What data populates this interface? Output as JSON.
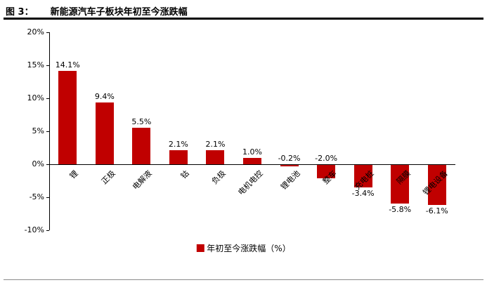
{
  "header": {
    "figure_label": "图 3：",
    "title": "新能源汽车子板块年初至今涨跌幅"
  },
  "chart_data": {
    "type": "bar",
    "title": "新能源汽车子板块年初至今涨跌幅",
    "categories": [
      "锂",
      "正极",
      "电解液",
      "钴",
      "负极",
      "电机电控",
      "锂电池",
      "整车",
      "充电桩",
      "隔膜",
      "锂电设备"
    ],
    "series": [
      {
        "name": "年初至今涨跌幅（%）",
        "values": [
          14.1,
          9.4,
          5.5,
          2.1,
          2.1,
          1.0,
          -0.2,
          -2.0,
          -3.4,
          -5.8,
          -6.1
        ]
      }
    ],
    "value_labels": [
      "14.1%",
      "9.4%",
      "5.5%",
      "2.1%",
      "2.1%",
      "1.0%",
      "-0.2%",
      "-2.0%",
      "-3.4%",
      "-5.8%",
      "-6.1%"
    ],
    "label_above_axis_indices": [
      6,
      7
    ],
    "xlabel": "",
    "ylabel": "",
    "ylim": [
      -10,
      20
    ],
    "yticks": [
      20,
      15,
      10,
      5,
      0,
      -5,
      -10
    ],
    "ytick_labels": [
      "20%",
      "15%",
      "10%",
      "5%",
      "0%",
      "-5%",
      "-10%"
    ],
    "grid": false,
    "legend_position": "bottom",
    "legend_label": "年初至今涨跌幅（%）",
    "bar_color": "#C00000"
  }
}
